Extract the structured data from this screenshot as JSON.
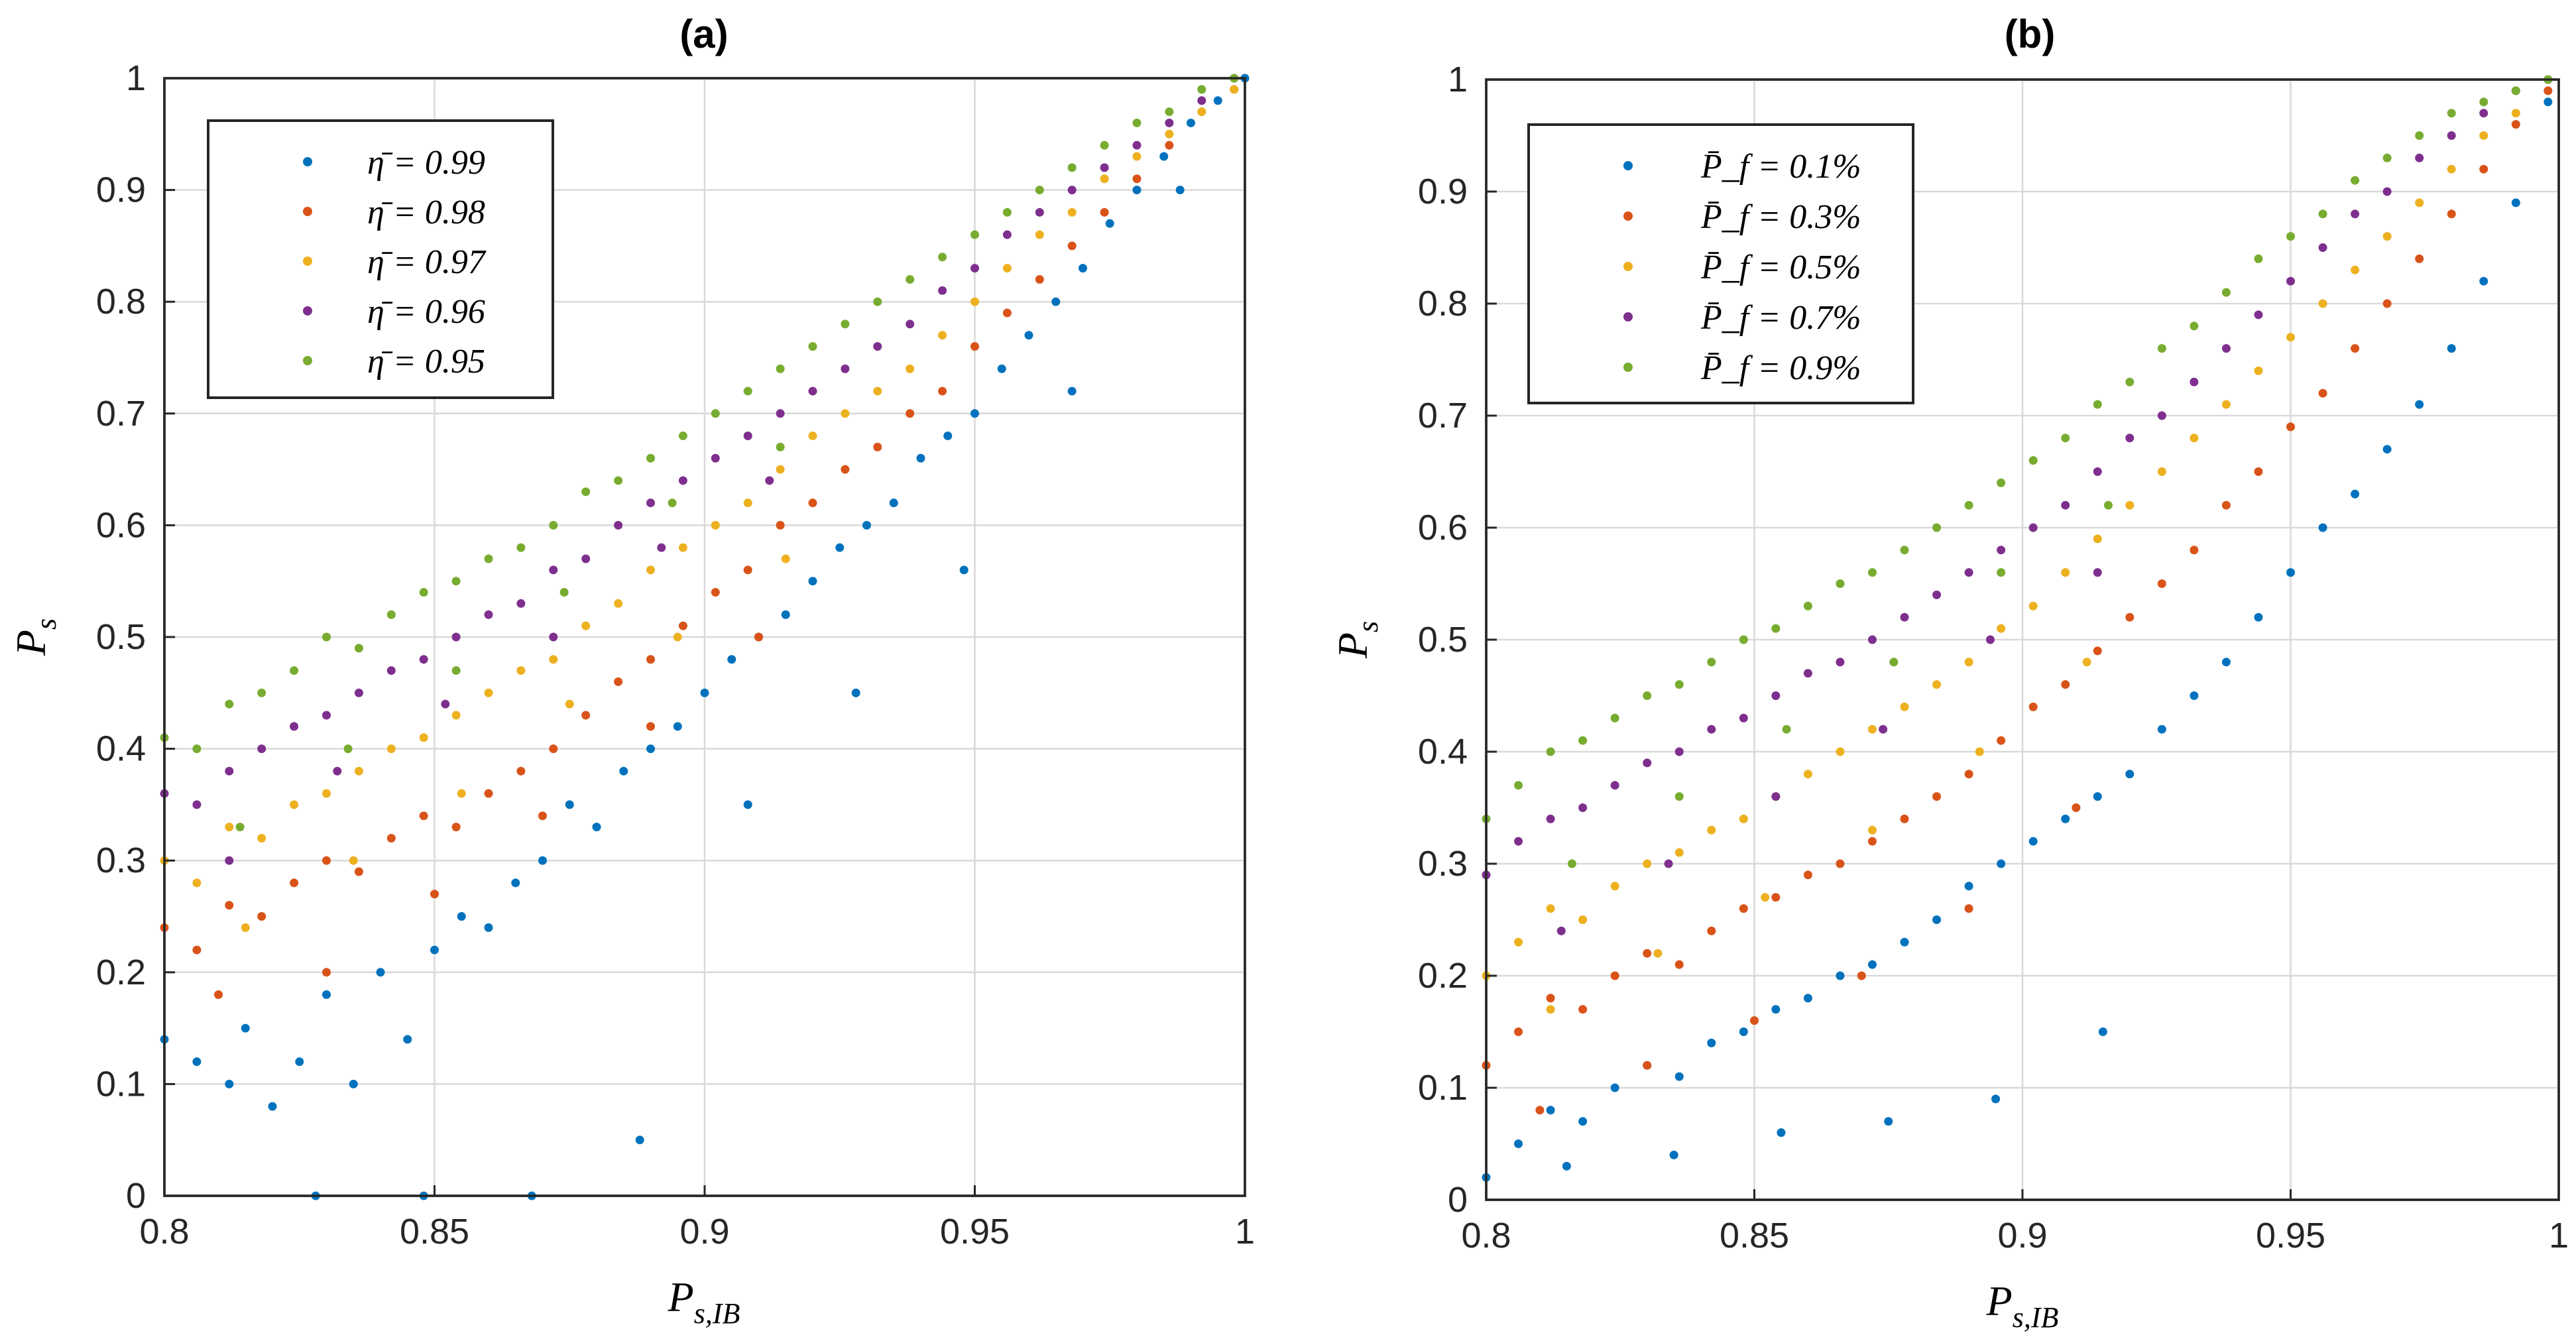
{
  "colors": {
    "series": [
      "#0072BD",
      "#D95319",
      "#EDB120",
      "#7E2F8E",
      "#77AC30"
    ],
    "axis": "#262626",
    "grid": "#d9d9d9"
  },
  "chart_data": [
    {
      "type": "scatter",
      "title": "(a)",
      "xlabel": "P_{s,IB}",
      "ylabel": "P_s",
      "xlim": [
        0.8,
        1
      ],
      "ylim": [
        0,
        1
      ],
      "xticks": [
        "0.8",
        "0.85",
        "0.9",
        "0.95",
        "1"
      ],
      "yticks": [
        "0",
        "0.1",
        "0.2",
        "0.3",
        "0.4",
        "0.5",
        "0.6",
        "0.7",
        "0.8",
        "0.9",
        "1"
      ],
      "grid": true,
      "legend_position": "top-left",
      "series": [
        {
          "name": "η̄ = 0.99",
          "color": "#0072BD",
          "x": [
            0.8,
            0.806,
            0.812,
            0.815,
            0.82,
            0.825,
            0.83,
            0.835,
            0.84,
            0.845,
            0.85,
            0.855,
            0.86,
            0.865,
            0.87,
            0.875,
            0.88,
            0.885,
            0.89,
            0.895,
            0.9,
            0.905,
            0.91,
            0.915,
            0.92,
            0.925,
            0.93,
            0.935,
            0.94,
            0.945,
            0.95,
            0.955,
            0.96,
            0.965,
            0.97,
            0.975,
            0.98,
            0.985,
            0.99,
            0.995,
            1.0,
            0.828,
            0.848,
            0.868,
            0.888,
            0.908,
            0.928,
            0.948,
            0.968,
            0.988
          ],
          "y": [
            0.14,
            0.12,
            0.1,
            0.15,
            0.08,
            0.12,
            0.18,
            0.1,
            0.2,
            0.14,
            0.22,
            0.25,
            0.24,
            0.28,
            0.3,
            0.35,
            0.33,
            0.38,
            0.4,
            0.42,
            0.45,
            0.48,
            0.5,
            0.52,
            0.55,
            0.58,
            0.6,
            0.62,
            0.66,
            0.68,
            0.7,
            0.74,
            0.77,
            0.8,
            0.83,
            0.87,
            0.9,
            0.93,
            0.96,
            0.98,
            1.0,
            0.0,
            0.0,
            0.0,
            0.05,
            0.35,
            0.45,
            0.56,
            0.72,
            0.9
          ]
        },
        {
          "name": "η̄ = 0.98",
          "color": "#D95319",
          "x": [
            0.8,
            0.806,
            0.812,
            0.818,
            0.824,
            0.83,
            0.836,
            0.842,
            0.848,
            0.854,
            0.86,
            0.866,
            0.872,
            0.878,
            0.884,
            0.89,
            0.896,
            0.902,
            0.908,
            0.914,
            0.92,
            0.926,
            0.932,
            0.938,
            0.944,
            0.95,
            0.956,
            0.962,
            0.968,
            0.974,
            0.98,
            0.986,
            0.992,
            0.998,
            0.81,
            0.83,
            0.85,
            0.87,
            0.89,
            0.91
          ],
          "y": [
            0.24,
            0.22,
            0.26,
            0.25,
            0.28,
            0.3,
            0.29,
            0.32,
            0.34,
            0.33,
            0.36,
            0.38,
            0.4,
            0.43,
            0.46,
            0.48,
            0.51,
            0.54,
            0.56,
            0.6,
            0.62,
            0.65,
            0.67,
            0.7,
            0.72,
            0.76,
            0.79,
            0.82,
            0.85,
            0.88,
            0.91,
            0.94,
            0.97,
            0.99,
            0.18,
            0.2,
            0.27,
            0.34,
            0.42,
            0.5
          ]
        },
        {
          "name": "η̄ = 0.97",
          "color": "#EDB120",
          "x": [
            0.8,
            0.806,
            0.812,
            0.818,
            0.824,
            0.83,
            0.836,
            0.842,
            0.848,
            0.854,
            0.86,
            0.866,
            0.872,
            0.878,
            0.884,
            0.89,
            0.896,
            0.902,
            0.908,
            0.914,
            0.92,
            0.926,
            0.932,
            0.938,
            0.944,
            0.95,
            0.956,
            0.962,
            0.968,
            0.974,
            0.98,
            0.986,
            0.992,
            0.998,
            0.815,
            0.835,
            0.855,
            0.875,
            0.895,
            0.915
          ],
          "y": [
            0.3,
            0.28,
            0.33,
            0.32,
            0.35,
            0.36,
            0.38,
            0.4,
            0.41,
            0.43,
            0.45,
            0.47,
            0.48,
            0.51,
            0.53,
            0.56,
            0.58,
            0.6,
            0.62,
            0.65,
            0.68,
            0.7,
            0.72,
            0.74,
            0.77,
            0.8,
            0.83,
            0.86,
            0.88,
            0.91,
            0.93,
            0.95,
            0.97,
            0.99,
            0.24,
            0.3,
            0.36,
            0.44,
            0.5,
            0.57
          ]
        },
        {
          "name": "η̄ = 0.96",
          "color": "#7E2F8E",
          "x": [
            0.8,
            0.806,
            0.812,
            0.818,
            0.824,
            0.83,
            0.836,
            0.842,
            0.848,
            0.854,
            0.86,
            0.866,
            0.872,
            0.878,
            0.884,
            0.89,
            0.896,
            0.902,
            0.908,
            0.914,
            0.92,
            0.926,
            0.932,
            0.938,
            0.944,
            0.95,
            0.956,
            0.962,
            0.968,
            0.974,
            0.98,
            0.986,
            0.992,
            0.998,
            0.812,
            0.832,
            0.852,
            0.872,
            0.892,
            0.912
          ],
          "y": [
            0.36,
            0.35,
            0.38,
            0.4,
            0.42,
            0.43,
            0.45,
            0.47,
            0.48,
            0.5,
            0.52,
            0.53,
            0.56,
            0.57,
            0.6,
            0.62,
            0.64,
            0.66,
            0.68,
            0.7,
            0.72,
            0.74,
            0.76,
            0.78,
            0.81,
            0.83,
            0.86,
            0.88,
            0.9,
            0.92,
            0.94,
            0.96,
            0.98,
            1.0,
            0.3,
            0.38,
            0.44,
            0.5,
            0.58,
            0.64
          ]
        },
        {
          "name": "η̄ = 0.95",
          "color": "#77AC30",
          "x": [
            0.8,
            0.806,
            0.812,
            0.818,
            0.824,
            0.83,
            0.836,
            0.842,
            0.848,
            0.854,
            0.86,
            0.866,
            0.872,
            0.878,
            0.884,
            0.89,
            0.896,
            0.902,
            0.908,
            0.914,
            0.92,
            0.926,
            0.932,
            0.938,
            0.944,
            0.95,
            0.956,
            0.962,
            0.968,
            0.974,
            0.98,
            0.986,
            0.992,
            0.998,
            0.814,
            0.834,
            0.854,
            0.874,
            0.894,
            0.914
          ],
          "y": [
            0.41,
            0.4,
            0.44,
            0.45,
            0.47,
            0.5,
            0.49,
            0.52,
            0.54,
            0.55,
            0.57,
            0.58,
            0.6,
            0.63,
            0.64,
            0.66,
            0.68,
            0.7,
            0.72,
            0.74,
            0.76,
            0.78,
            0.8,
            0.82,
            0.84,
            0.86,
            0.88,
            0.9,
            0.92,
            0.94,
            0.96,
            0.97,
            0.99,
            1.0,
            0.33,
            0.4,
            0.47,
            0.54,
            0.62,
            0.67
          ]
        }
      ]
    },
    {
      "type": "scatter",
      "title": "(b)",
      "xlabel": "P_{s,IB}",
      "ylabel": "P_s",
      "xlim": [
        0.8,
        1
      ],
      "ylim": [
        0,
        1
      ],
      "xticks": [
        "0.8",
        "0.85",
        "0.9",
        "0.95",
        "1"
      ],
      "yticks": [
        "0",
        "0.1",
        "0.2",
        "0.3",
        "0.4",
        "0.5",
        "0.6",
        "0.7",
        "0.8",
        "0.9",
        "1"
      ],
      "grid": true,
      "legend_position": "top-left",
      "series": [
        {
          "name": "P̄_f = 0.1%",
          "color": "#0072BD",
          "x": [
            0.8,
            0.806,
            0.812,
            0.818,
            0.824,
            0.83,
            0.836,
            0.842,
            0.848,
            0.854,
            0.86,
            0.866,
            0.872,
            0.878,
            0.884,
            0.89,
            0.896,
            0.902,
            0.908,
            0.914,
            0.92,
            0.926,
            0.932,
            0.938,
            0.944,
            0.95,
            0.956,
            0.962,
            0.968,
            0.974,
            0.98,
            0.986,
            0.992,
            0.998,
            0.815,
            0.835,
            0.855,
            0.875,
            0.895,
            0.915
          ],
          "y": [
            0.02,
            0.05,
            0.08,
            0.07,
            0.1,
            0.12,
            0.11,
            0.14,
            0.15,
            0.17,
            0.18,
            0.2,
            0.21,
            0.23,
            0.25,
            0.28,
            0.3,
            0.32,
            0.34,
            0.36,
            0.38,
            0.42,
            0.45,
            0.48,
            0.52,
            0.56,
            0.6,
            0.63,
            0.67,
            0.71,
            0.76,
            0.82,
            0.89,
            0.98,
            0.03,
            0.04,
            0.06,
            0.07,
            0.09,
            0.15
          ]
        },
        {
          "name": "P̄_f = 0.3%",
          "color": "#D95319",
          "x": [
            0.8,
            0.806,
            0.812,
            0.818,
            0.824,
            0.83,
            0.836,
            0.842,
            0.848,
            0.854,
            0.86,
            0.866,
            0.872,
            0.878,
            0.884,
            0.89,
            0.896,
            0.902,
            0.908,
            0.914,
            0.92,
            0.926,
            0.932,
            0.938,
            0.944,
            0.95,
            0.956,
            0.962,
            0.968,
            0.974,
            0.98,
            0.986,
            0.992,
            0.998,
            0.81,
            0.83,
            0.85,
            0.87,
            0.89,
            0.91
          ],
          "y": [
            0.12,
            0.15,
            0.18,
            0.17,
            0.2,
            0.22,
            0.21,
            0.24,
            0.26,
            0.27,
            0.29,
            0.3,
            0.32,
            0.34,
            0.36,
            0.38,
            0.41,
            0.44,
            0.46,
            0.49,
            0.52,
            0.55,
            0.58,
            0.62,
            0.65,
            0.69,
            0.72,
            0.76,
            0.8,
            0.84,
            0.88,
            0.92,
            0.96,
            0.99,
            0.08,
            0.12,
            0.16,
            0.2,
            0.26,
            0.35
          ]
        },
        {
          "name": "P̄_f = 0.5%",
          "color": "#EDB120",
          "x": [
            0.8,
            0.806,
            0.812,
            0.818,
            0.824,
            0.83,
            0.836,
            0.842,
            0.848,
            0.854,
            0.86,
            0.866,
            0.872,
            0.878,
            0.884,
            0.89,
            0.896,
            0.902,
            0.908,
            0.914,
            0.92,
            0.926,
            0.932,
            0.938,
            0.944,
            0.95,
            0.956,
            0.962,
            0.968,
            0.974,
            0.98,
            0.986,
            0.992,
            0.998,
            0.812,
            0.832,
            0.852,
            0.872,
            0.892,
            0.912
          ],
          "y": [
            0.2,
            0.23,
            0.26,
            0.25,
            0.28,
            0.3,
            0.31,
            0.33,
            0.34,
            0.36,
            0.38,
            0.4,
            0.42,
            0.44,
            0.46,
            0.48,
            0.51,
            0.53,
            0.56,
            0.59,
            0.62,
            0.65,
            0.68,
            0.71,
            0.74,
            0.77,
            0.8,
            0.83,
            0.86,
            0.89,
            0.92,
            0.95,
            0.97,
            1.0,
            0.17,
            0.22,
            0.27,
            0.33,
            0.4,
            0.48
          ]
        },
        {
          "name": "P̄_f = 0.7%",
          "color": "#7E2F8E",
          "x": [
            0.8,
            0.806,
            0.812,
            0.818,
            0.824,
            0.83,
            0.836,
            0.842,
            0.848,
            0.854,
            0.86,
            0.866,
            0.872,
            0.878,
            0.884,
            0.89,
            0.896,
            0.902,
            0.908,
            0.914,
            0.92,
            0.926,
            0.932,
            0.938,
            0.944,
            0.95,
            0.956,
            0.962,
            0.968,
            0.974,
            0.98,
            0.986,
            0.992,
            0.998,
            0.814,
            0.834,
            0.854,
            0.874,
            0.894,
            0.914
          ],
          "y": [
            0.29,
            0.32,
            0.34,
            0.35,
            0.37,
            0.39,
            0.4,
            0.42,
            0.43,
            0.45,
            0.47,
            0.48,
            0.5,
            0.52,
            0.54,
            0.56,
            0.58,
            0.6,
            0.62,
            0.65,
            0.68,
            0.7,
            0.73,
            0.76,
            0.79,
            0.82,
            0.85,
            0.88,
            0.9,
            0.93,
            0.95,
            0.97,
            0.99,
            1.0,
            0.24,
            0.3,
            0.36,
            0.42,
            0.5,
            0.56
          ]
        },
        {
          "name": "P̄_f = 0.9%",
          "color": "#77AC30",
          "x": [
            0.8,
            0.806,
            0.812,
            0.818,
            0.824,
            0.83,
            0.836,
            0.842,
            0.848,
            0.854,
            0.86,
            0.866,
            0.872,
            0.878,
            0.884,
            0.89,
            0.896,
            0.902,
            0.908,
            0.914,
            0.92,
            0.926,
            0.932,
            0.938,
            0.944,
            0.95,
            0.956,
            0.962,
            0.968,
            0.974,
            0.98,
            0.986,
            0.992,
            0.998,
            0.816,
            0.836,
            0.856,
            0.876,
            0.896,
            0.916
          ],
          "y": [
            0.34,
            0.37,
            0.4,
            0.41,
            0.43,
            0.45,
            0.46,
            0.48,
            0.5,
            0.51,
            0.53,
            0.55,
            0.56,
            0.58,
            0.6,
            0.62,
            0.64,
            0.66,
            0.68,
            0.71,
            0.73,
            0.76,
            0.78,
            0.81,
            0.84,
            0.86,
            0.88,
            0.91,
            0.93,
            0.95,
            0.97,
            0.98,
            0.99,
            1.0,
            0.3,
            0.36,
            0.42,
            0.48,
            0.56,
            0.62
          ]
        }
      ]
    }
  ]
}
